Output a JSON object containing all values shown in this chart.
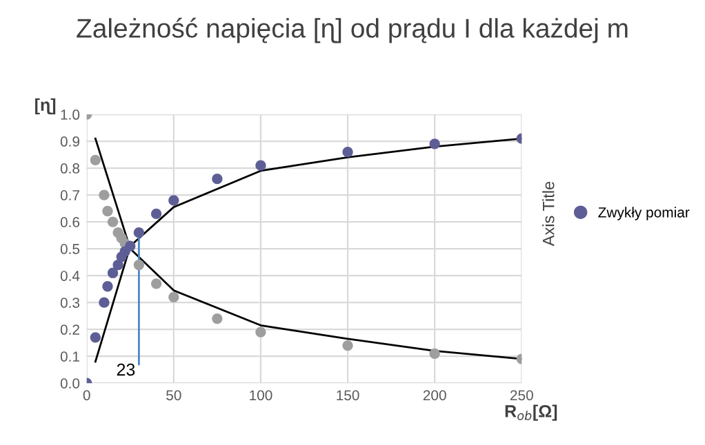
{
  "chart_data": {
    "type": "scatter",
    "title": "Zależność napięcia [ɳ] od prądu I dla każdej m",
    "xlabel": "R$_{ob}$[Ω]",
    "ylabel": "[ɳ]",
    "y2label": "Axis Title",
    "series": [
      {
        "color": "#9e9e9e",
        "marker": "circle",
        "x": [
          0,
          5,
          10,
          12,
          15,
          18,
          20,
          22,
          25,
          30,
          40,
          50,
          75,
          100,
          150,
          200,
          250
        ],
        "values": [
          1.0,
          0.83,
          0.7,
          0.64,
          0.6,
          0.56,
          0.54,
          0.52,
          null,
          0.44,
          0.37,
          0.32,
          0.24,
          0.19,
          0.14,
          0.11,
          0.09
        ]
      },
      {
        "name": "Zwykły pomiar",
        "color": "#5e5e96",
        "marker": "circle",
        "x": [
          0,
          5,
          10,
          12,
          15,
          18,
          20,
          22,
          25,
          30,
          40,
          50,
          75,
          100,
          150,
          200,
          250
        ],
        "values": [
          0.0,
          0.17,
          0.3,
          0.36,
          0.41,
          0.44,
          0.47,
          0.49,
          0.51,
          0.56,
          0.63,
          0.68,
          0.76,
          0.81,
          0.86,
          0.89,
          0.91
        ]
      },
      {
        "type": "line",
        "color": "#000000",
        "x": [
          5,
          25,
          50,
          100,
          150,
          200,
          250
        ],
        "values": [
          0.08,
          0.51,
          0.655,
          0.79,
          0.84,
          0.88,
          0.91
        ]
      },
      {
        "type": "line",
        "color": "#000000",
        "x": [
          5,
          25,
          50,
          100,
          150,
          200,
          250
        ],
        "values": [
          0.91,
          0.5,
          0.345,
          0.215,
          0.165,
          0.12,
          0.09
        ]
      },
      {
        "type": "line",
        "color": "#4a86c8",
        "x": [
          30,
          30
        ],
        "values": [
          0.07,
          0.55
        ]
      }
    ],
    "annotations": [
      "23"
    ],
    "xlim": [
      0,
      250
    ],
    "xticks": [
      0,
      50,
      100,
      150,
      200,
      250
    ],
    "ylim": [
      0,
      1.0
    ],
    "yticks": [
      {
        "value": 0,
        "label": "0.0"
      },
      {
        "value": 0.1,
        "label": "0.1"
      },
      {
        "value": 0.2,
        "label": "0.2"
      },
      {
        "value": 0.3,
        "label": "0.3"
      },
      {
        "value": 0.4,
        "label": "0.4"
      },
      {
        "value": 0.5,
        "label": "0.5"
      },
      {
        "value": 0.6,
        "label": "0.6"
      },
      {
        "value": 0.7,
        "label": "0.7"
      },
      {
        "value": 0.8,
        "label": "0.8"
      },
      {
        "value": 0.9,
        "label": "0.9"
      },
      {
        "value": 1.0,
        "label": "1.0"
      }
    ],
    "grid": true,
    "legend": "right"
  }
}
